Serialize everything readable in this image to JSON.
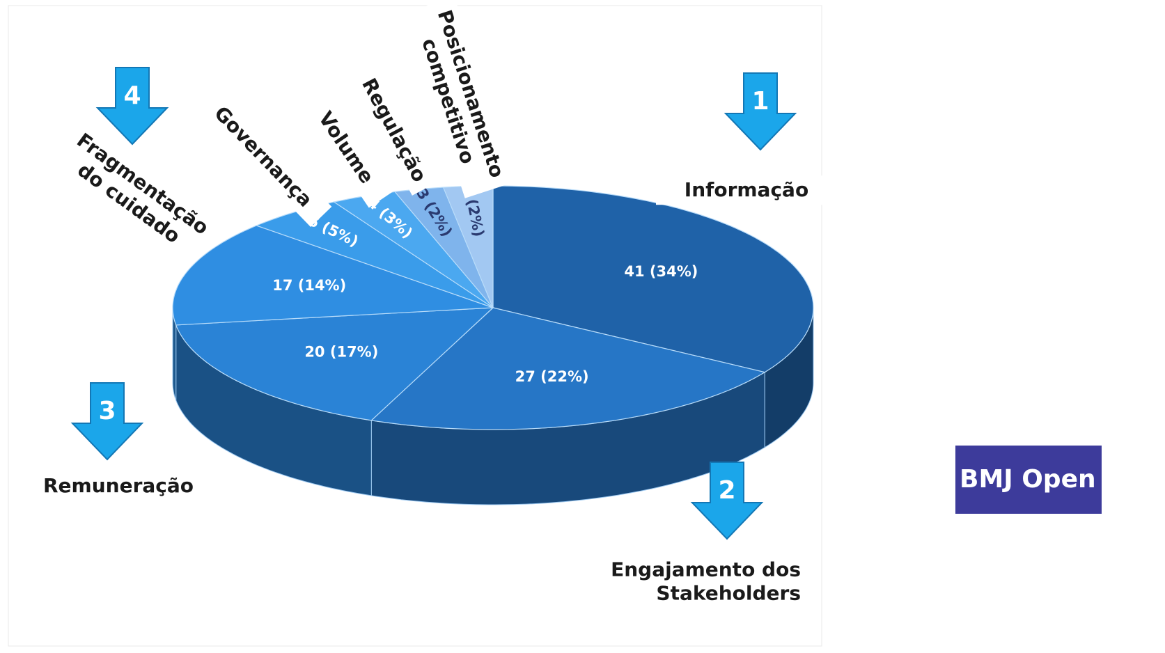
{
  "chart_data": {
    "type": "pie3d",
    "categories": [
      "Informação",
      "Engajamento dos Stakeholders",
      "Remuneração",
      "Fragmentação do cuidado",
      "Governança",
      "Volume",
      "Regulação",
      "Posicionamento competitivo"
    ],
    "values": [
      41,
      27,
      20,
      17,
      6,
      4,
      3,
      3
    ],
    "value_labels": [
      "41 (34%)",
      "27 (22%)",
      "20 (17%)",
      "17 (14%)",
      "6 (5%)",
      "4 (3%)",
      "3 (2%)",
      "3 (2%)"
    ],
    "colors": [
      "#1f62a8",
      "#2676c6",
      "#2a83d6",
      "#2f8ee2",
      "#3a9cea",
      "#4ba8f0",
      "#7fb4ec",
      "#a2c8f2"
    ],
    "annotations": [
      "1",
      "2",
      "3",
      "4"
    ]
  },
  "logo": "BMJ Open"
}
